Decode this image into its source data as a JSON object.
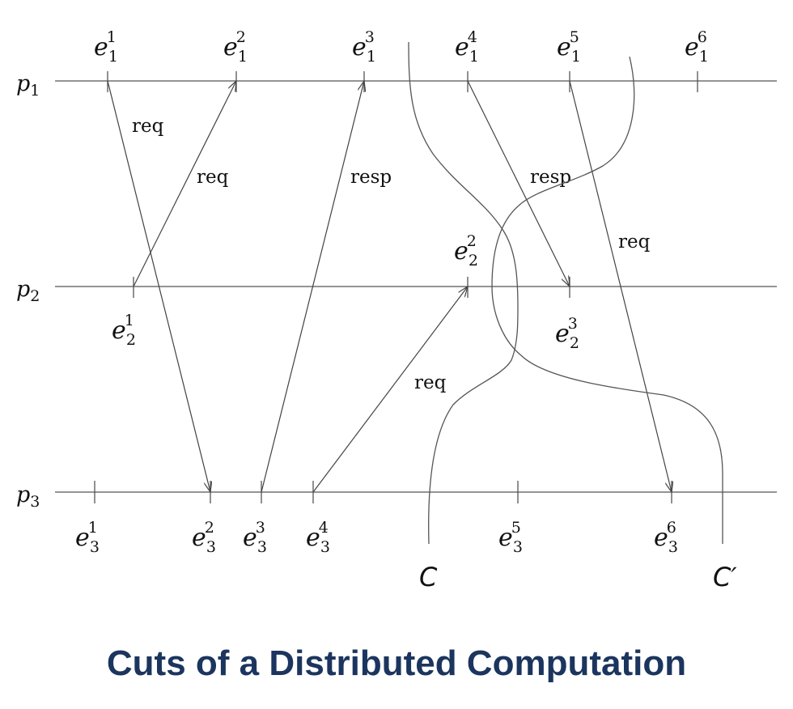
{
  "processes": [
    {
      "id": "p1",
      "base": "p",
      "sub": "1"
    },
    {
      "id": "p2",
      "base": "p",
      "sub": "2"
    },
    {
      "id": "p3",
      "base": "p",
      "sub": "3"
    }
  ],
  "events": [
    {
      "id": "e1_1",
      "base": "e",
      "sub": "1",
      "sup": "1"
    },
    {
      "id": "e1_2",
      "base": "e",
      "sub": "1",
      "sup": "2"
    },
    {
      "id": "e1_3",
      "base": "e",
      "sub": "1",
      "sup": "3"
    },
    {
      "id": "e1_4",
      "base": "e",
      "sub": "1",
      "sup": "4"
    },
    {
      "id": "e1_5",
      "base": "e",
      "sub": "1",
      "sup": "5"
    },
    {
      "id": "e1_6",
      "base": "e",
      "sub": "1",
      "sup": "6"
    },
    {
      "id": "e2_1",
      "base": "e",
      "sub": "2",
      "sup": "1"
    },
    {
      "id": "e2_2",
      "base": "e",
      "sub": "2",
      "sup": "2"
    },
    {
      "id": "e2_3",
      "base": "e",
      "sub": "2",
      "sup": "3"
    },
    {
      "id": "e3_1",
      "base": "e",
      "sub": "3",
      "sup": "1"
    },
    {
      "id": "e3_2",
      "base": "e",
      "sub": "3",
      "sup": "2"
    },
    {
      "id": "e3_3",
      "base": "e",
      "sub": "3",
      "sup": "3"
    },
    {
      "id": "e3_4",
      "base": "e",
      "sub": "3",
      "sup": "4"
    },
    {
      "id": "e3_5",
      "base": "e",
      "sub": "3",
      "sup": "5"
    },
    {
      "id": "e3_6",
      "base": "e",
      "sub": "3",
      "sup": "6"
    }
  ],
  "messages": [
    {
      "from": "e1_1",
      "to": "e3_2",
      "label": "req"
    },
    {
      "from": "e2_1",
      "to": "e1_2",
      "label": "req"
    },
    {
      "from": "e3_3",
      "to": "e1_3",
      "label": "resp"
    },
    {
      "from": "e1_4",
      "to": "e2_3",
      "label": "resp"
    },
    {
      "from": "e1_5",
      "to": "e3_6",
      "label": "req"
    },
    {
      "from": "e3_4",
      "to": "e2_2",
      "label": "req"
    }
  ],
  "cuts": [
    {
      "id": "C",
      "label": "C"
    },
    {
      "id": "Cprime",
      "label": "C′"
    }
  ],
  "caption": "Cuts of a Distributed Computation"
}
